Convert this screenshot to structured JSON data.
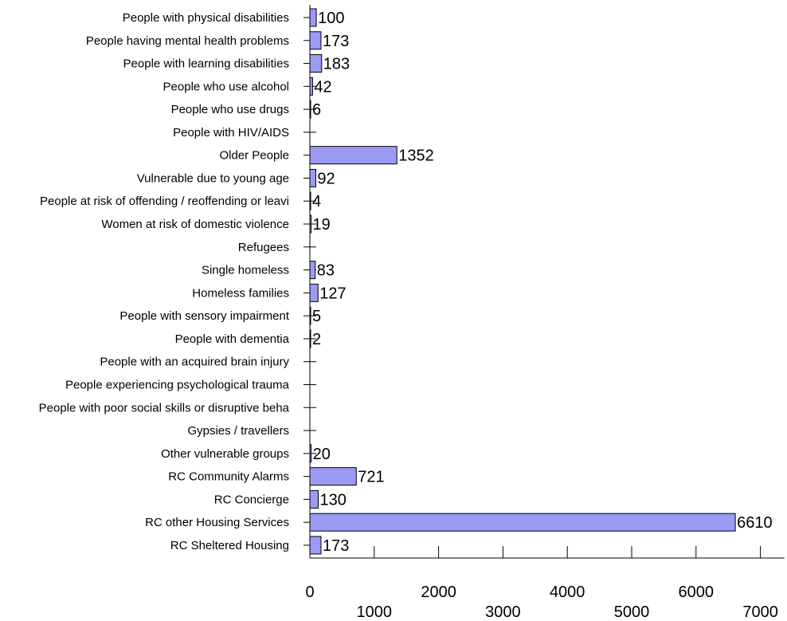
{
  "chart_data": {
    "type": "bar",
    "orientation": "horizontal",
    "categories": [
      "People with physical disabilities",
      "People having mental health problems",
      "People with learning disabilities",
      "People who use alcohol",
      "People who use drugs",
      "People with HIV/AIDS",
      "Older People",
      "Vulnerable due to young age",
      "People at risk of offending / reoffending or leavi",
      "Women at risk of domestic violence",
      "Refugees",
      "Single homeless",
      "Homeless families",
      "People with sensory impairment",
      "People with dementia",
      "People with an acquired brain injury",
      "People experiencing psychological trauma",
      "People with poor social skills or disruptive beha",
      "Gypsies / travellers",
      "Other vulnerable groups",
      "RC Community Alarms",
      "RC Concierge",
      "RC other Housing Services",
      "RC Sheltered Housing"
    ],
    "values": [
      100,
      173,
      183,
      42,
      6,
      null,
      1352,
      92,
      4,
      19,
      null,
      83,
      127,
      5,
      2,
      null,
      null,
      null,
      null,
      20,
      721,
      130,
      6610,
      173
    ],
    "value_labels": [
      "100",
      "173",
      "183",
      "42",
      "6",
      "",
      "1352",
      "92",
      "4",
      "19",
      "",
      "83",
      "127",
      "5",
      "2",
      "",
      "",
      "",
      "",
      "20",
      "721",
      "130",
      "6610",
      "173"
    ],
    "xlim": [
      0,
      7000
    ],
    "xticks": [
      0,
      1000,
      2000,
      3000,
      4000,
      5000,
      6000,
      7000
    ],
    "xtick_labels": [
      "0",
      "1000",
      "2000",
      "3000",
      "4000",
      "5000",
      "6000",
      "7000"
    ],
    "bar_color": "#9b9bf4",
    "bar_edge_color": "#000000",
    "grid": false,
    "legend": "none"
  }
}
